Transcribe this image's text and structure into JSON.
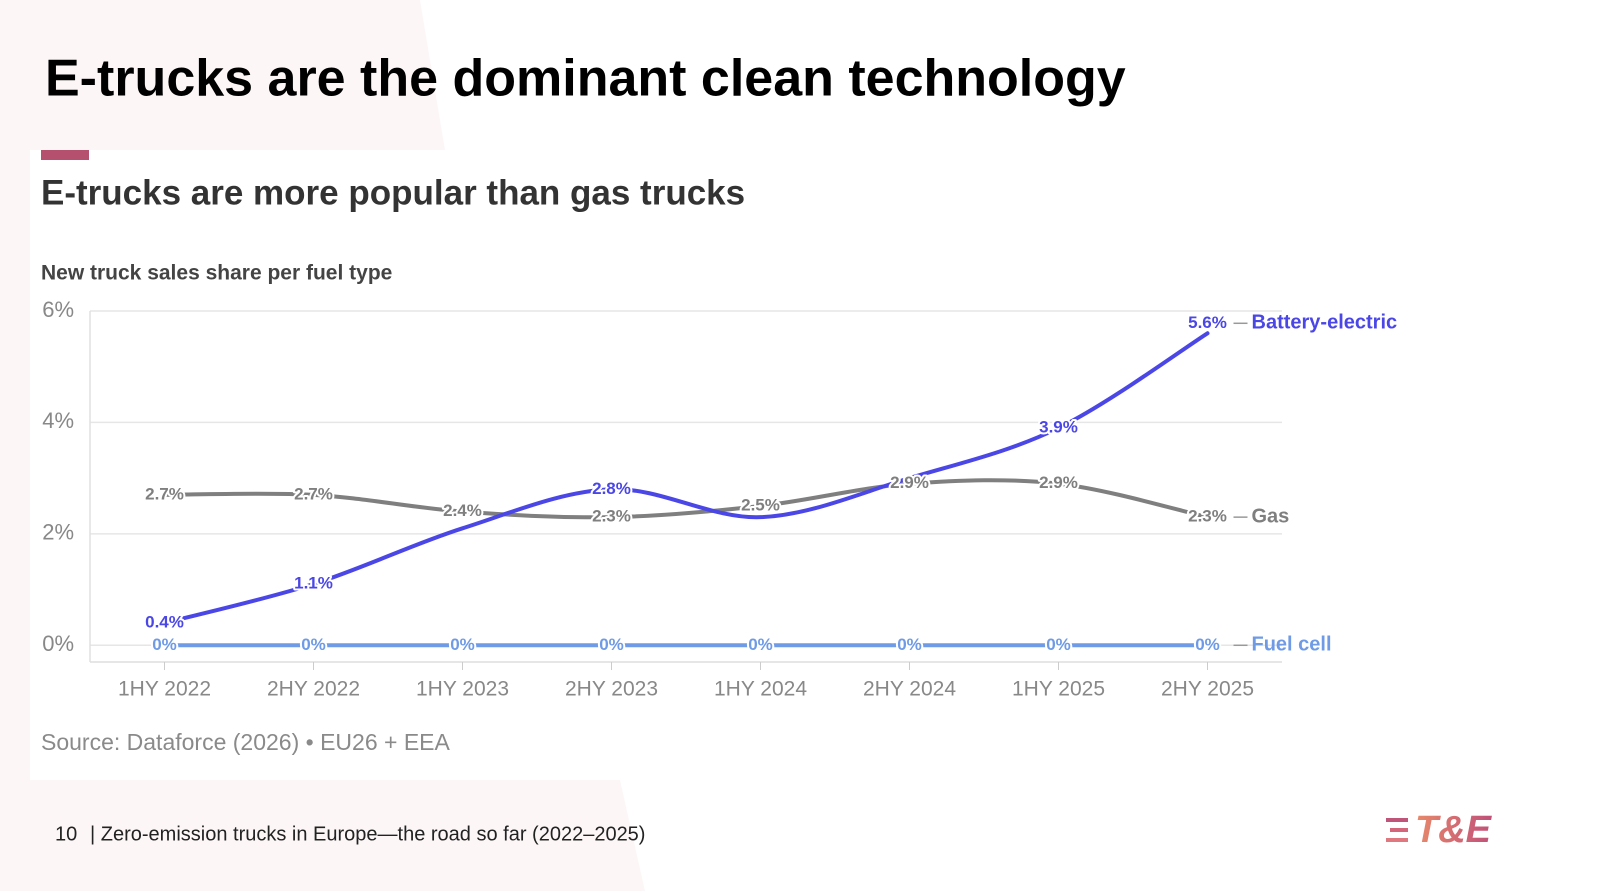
{
  "title": "E-trucks are the dominant clean technology",
  "chart_data": {
    "type": "line",
    "title": "E-trucks are more popular than gas trucks",
    "subtitle": "New truck sales share per fuel type",
    "categories": [
      "1HY 2022",
      "2HY 2022",
      "1HY 2023",
      "2HY 2023",
      "1HY 2024",
      "2HY 2024",
      "1HY 2025",
      "2HY 2025"
    ],
    "series": [
      {
        "name": "Battery-electric",
        "color": "#4b47e6",
        "values": [
          0.4,
          1.1,
          2.1,
          2.8,
          2.3,
          3.0,
          3.9,
          5.6
        ],
        "value_labels": [
          "0.4%",
          "1.1%",
          null,
          "2.8%",
          null,
          null,
          "3.9%",
          "5.6%"
        ]
      },
      {
        "name": "Gas",
        "color": "#7f7f7f",
        "values": [
          2.7,
          2.7,
          2.4,
          2.3,
          2.5,
          2.9,
          2.9,
          2.3
        ],
        "value_labels": [
          "2.7%",
          "2.7%",
          "2.4%",
          "2.3%",
          "2.5%",
          "2.9%",
          "2.9%",
          "2.3%"
        ]
      },
      {
        "name": "Fuel cell",
        "color": "#6f9be6",
        "values": [
          0,
          0,
          0,
          0,
          0,
          0,
          0,
          0
        ],
        "value_labels": [
          "0%",
          "0%",
          "0%",
          "0%",
          "0%",
          "0%",
          "0%",
          "0%"
        ]
      }
    ],
    "ylim": [
      -0.3,
      6
    ],
    "yticks": [
      {
        "value": 0,
        "label": "0%"
      },
      {
        "value": 2,
        "label": "2%"
      },
      {
        "value": 4,
        "label": "4%"
      },
      {
        "value": 6,
        "label": "6%"
      }
    ],
    "grid": true,
    "source": "Source: Dataforce (2026) • EU26 + EEA"
  },
  "footer": {
    "page": "10",
    "text": "| Zero-emission trucks in Europe—the road so far (2022–2025)",
    "logo": "T&E"
  }
}
